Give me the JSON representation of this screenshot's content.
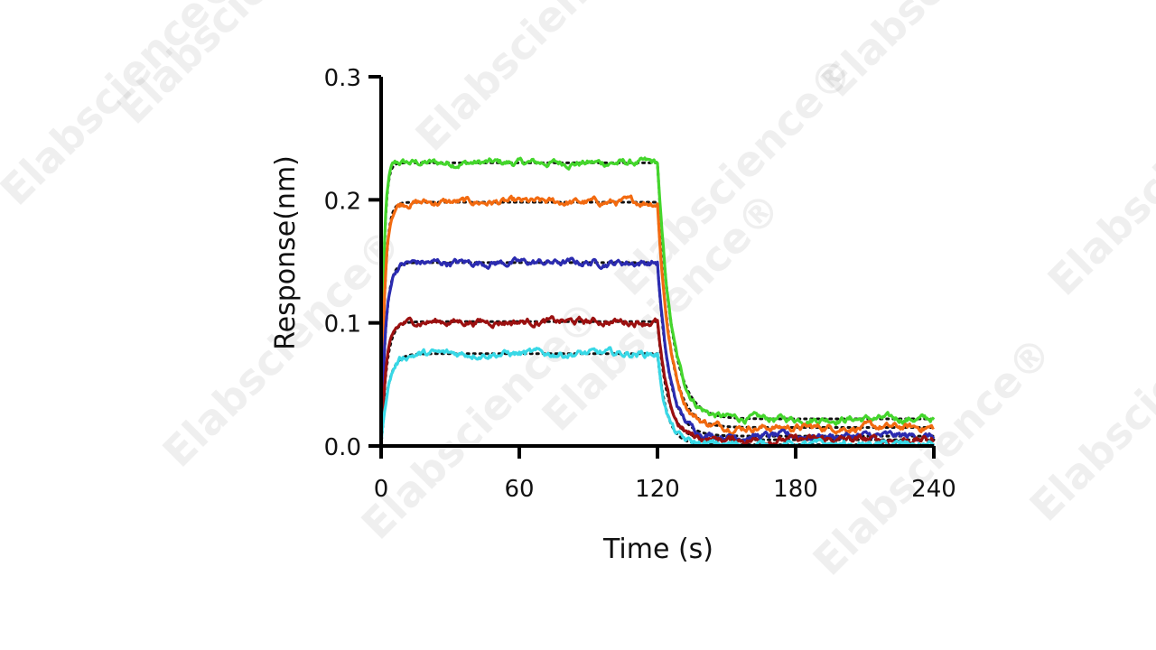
{
  "watermark": {
    "text": "Elabscience",
    "mark": "®"
  },
  "chart_data": {
    "type": "line",
    "title": "",
    "xlabel": "Time (s)",
    "ylabel": "Response(nm)",
    "xlim": [
      0,
      240
    ],
    "ylim": [
      0,
      0.3
    ],
    "xticks": [
      0,
      60,
      120,
      180,
      240
    ],
    "yticks": [
      0.0,
      0.1,
      0.2,
      0.3
    ],
    "xtick_labels": [
      "0",
      "60",
      "120",
      "180",
      "240"
    ],
    "ytick_labels": [
      "0.0",
      "0.1",
      "0.2",
      "0.3"
    ],
    "grid": false,
    "legend": "none",
    "association_end_s": 120,
    "series": [
      {
        "color": "#44d62c",
        "plateau": 0.23,
        "ka_tau_s": 1.2,
        "kd_tau_s": 6.0,
        "residual": 0.022
      },
      {
        "color": "#f26a10",
        "plateau": 0.198,
        "ka_tau_s": 1.6,
        "kd_tau_s": 5.5,
        "residual": 0.015
      },
      {
        "color": "#2b2bb0",
        "plateau": 0.149,
        "ka_tau_s": 2.0,
        "kd_tau_s": 5.0,
        "residual": 0.008
      },
      {
        "color": "#9b1010",
        "plateau": 0.101,
        "ka_tau_s": 2.4,
        "kd_tau_s": 4.5,
        "residual": 0.005
      },
      {
        "color": "#38d8e6",
        "plateau": 0.075,
        "ka_tau_s": 3.0,
        "kd_tau_s": 4.0,
        "residual": 0.001
      }
    ],
    "fit_style": {
      "color": "#111111",
      "dotted": true
    }
  }
}
